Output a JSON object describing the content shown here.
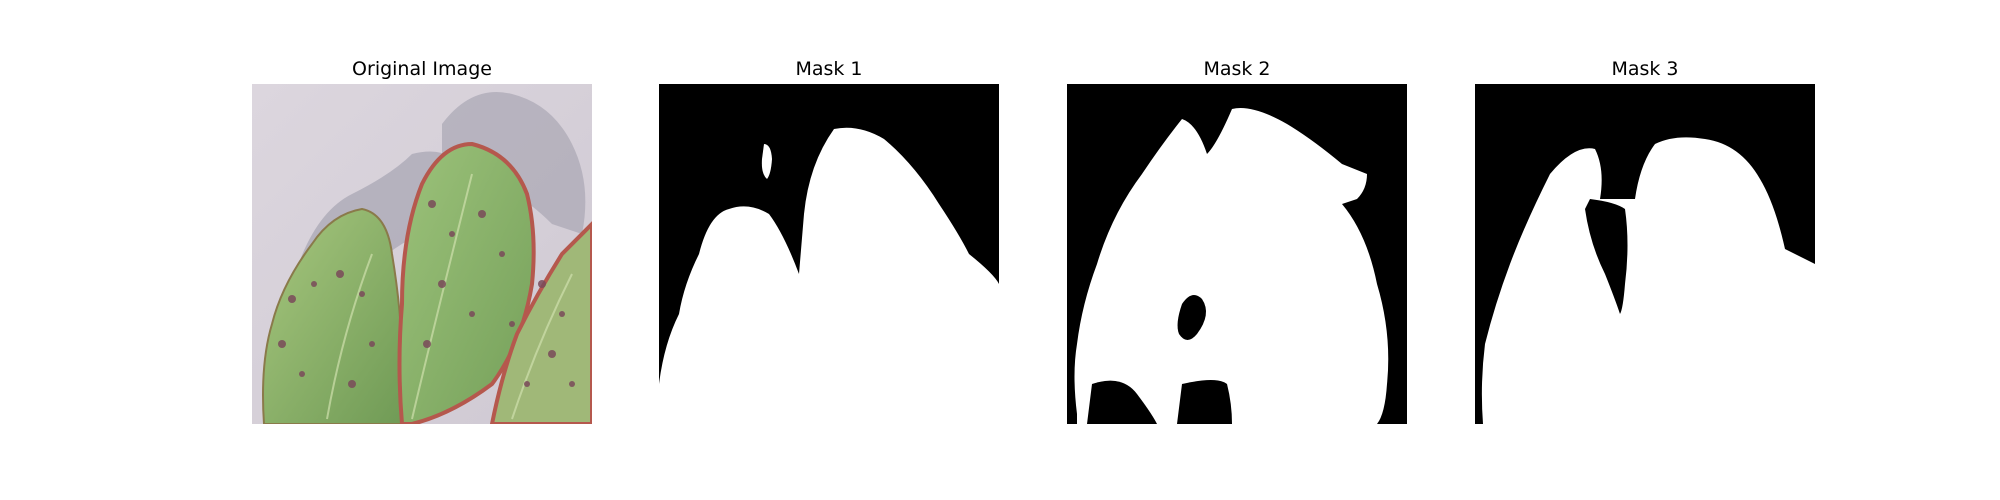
{
  "figure": {
    "panels": [
      {
        "title": "Original Image",
        "content": "photo of a strawberry leaf with purple-brown leaf spots on a light gray background"
      },
      {
        "title": "Mask 1",
        "content": "binary segmentation mask"
      },
      {
        "title": "Mask 2",
        "content": "binary segmentation mask"
      },
      {
        "title": "Mask 3",
        "content": "binary segmentation mask"
      }
    ]
  },
  "colors": {
    "background": "#ffffff",
    "mask_background": "#000000",
    "mask_foreground": "#ffffff",
    "leaf_green": "#8fb86a",
    "leaf_edge": "#b5584d",
    "photo_background": "#d8d2da",
    "shadow": "#a9a6b2",
    "lesion": "#7a4a5a"
  }
}
